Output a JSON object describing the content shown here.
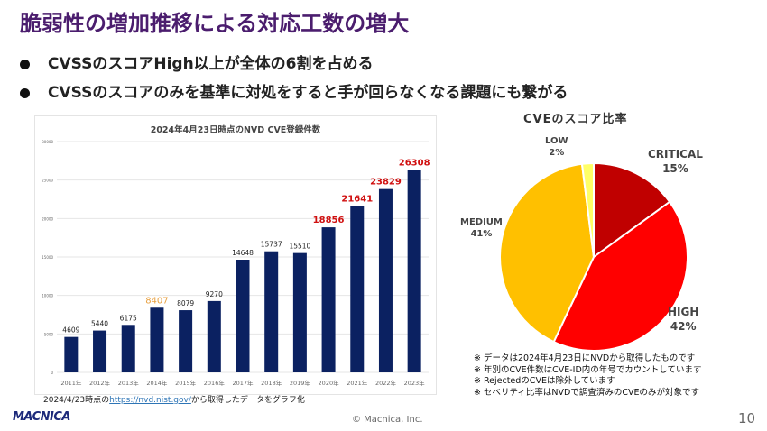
{
  "slide": {
    "title": "脆弱性の増加推移による対応工数の増大",
    "bullets": [
      "CVSSのスコアHigh以上が全体の6割を占める",
      "CVSSのスコアのみを基準に対処をすると手が回らなくなる課題にも繋がる"
    ],
    "source_prefix": "2024/4/23時点の",
    "source_link": "https://nvd.nist.gov/",
    "source_suffix": "から取得したデータをグラフ化",
    "notes": [
      "※ データは2024年4月23日にNVDから取得したものです",
      "※ 年別のCVE件数はCVE-ID内の年号でカウントしています",
      "※ RejectedのCVEは除外しています",
      "※ セベリティ比率はNVDで調査済みのCVEのみが対象です"
    ],
    "logo": "MACNICA",
    "copyright": "© Macnica, Inc.",
    "page_number": "10"
  },
  "chart_data": [
    {
      "type": "bar",
      "title": "2024年4月23日時点のNVD CVE登録件数",
      "categories": [
        "2011年",
        "2012年",
        "2013年",
        "2014年",
        "2015年",
        "2016年",
        "2017年",
        "2018年",
        "2019年",
        "2020年",
        "2021年",
        "2022年",
        "2023年"
      ],
      "values": [
        4609,
        5440,
        6175,
        8407,
        8079,
        9270,
        14648,
        15737,
        15510,
        18856,
        21641,
        23829,
        26308
      ],
      "label_colors": [
        "#222",
        "#222",
        "#222",
        "#e8a040",
        "#222",
        "#222",
        "#222",
        "#222",
        "#222",
        "#d01010",
        "#d01010",
        "#d01010",
        "#d01010"
      ],
      "yticks": [
        "0",
        "5000",
        "10000",
        "15000",
        "20000",
        "25000",
        "30000"
      ],
      "ylim": [
        0,
        30000
      ],
      "grid": true,
      "bar_color": "#0b2161"
    },
    {
      "type": "pie",
      "title": "CVEのスコア比率",
      "slices": [
        {
          "name": "CRITICAL",
          "value": 15,
          "label": "15%",
          "color": "#c00000"
        },
        {
          "name": "HIGH",
          "value": 42,
          "label": "42%",
          "color": "#ff0000"
        },
        {
          "name": "MEDIUM",
          "value": 41,
          "label": "41%",
          "color": "#ffc000"
        },
        {
          "name": "LOW",
          "value": 2,
          "label": "2%",
          "color": "#ffff66"
        }
      ]
    }
  ]
}
